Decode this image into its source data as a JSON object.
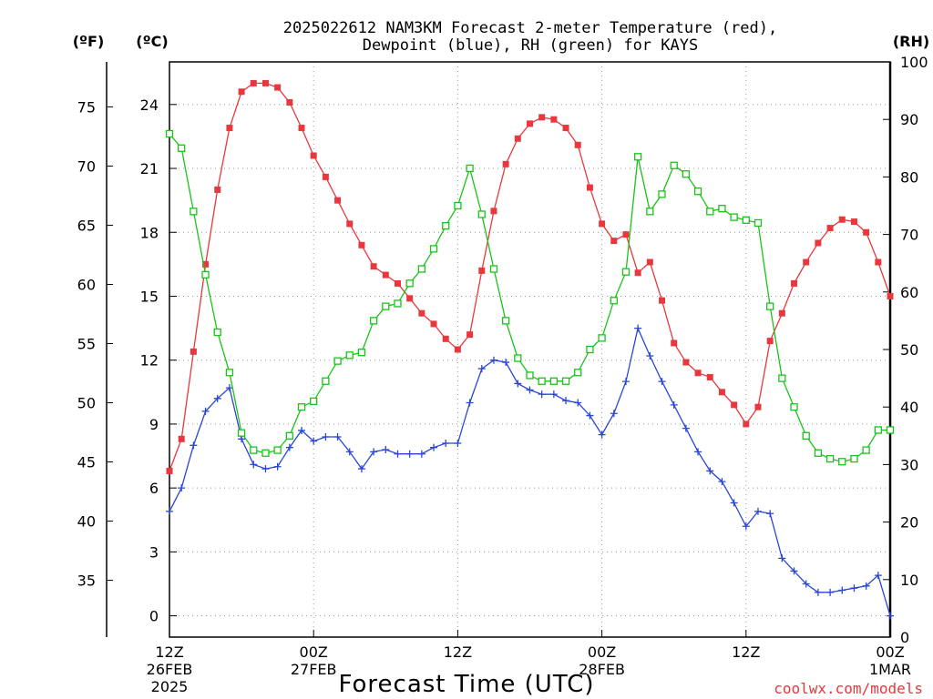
{
  "title": {
    "line1": "2025022612 NAM3KM Forecast 2-meter Temperature (red),",
    "line2": "Dewpoint (blue), RH (green) for KAYS"
  },
  "credit": "coolwx.com/models",
  "colors": {
    "temperature": "#e8383d",
    "dewpoint": "#2a46d6",
    "rh": "#19c419",
    "credit": "#e8383d"
  },
  "chart_data": {
    "type": "line",
    "xlabel": "Forecast Time (UTC)",
    "x_range": [
      0,
      60
    ],
    "x_ticks": [
      {
        "x": 0,
        "lines": [
          "12Z",
          "26FEB",
          "2025"
        ]
      },
      {
        "x": 12,
        "lines": [
          "00Z",
          "27FEB"
        ]
      },
      {
        "x": 24,
        "lines": [
          "12Z"
        ]
      },
      {
        "x": 36,
        "lines": [
          "00Z",
          "28FEB"
        ]
      },
      {
        "x": 48,
        "lines": [
          "12Z"
        ]
      },
      {
        "x": 60,
        "lines": [
          "00Z",
          "1MAR"
        ]
      }
    ],
    "y_left_c": {
      "label": "(ºC)",
      "range": [
        -1,
        26
      ],
      "ticks": [
        0,
        3,
        6,
        9,
        12,
        15,
        18,
        21,
        24
      ]
    },
    "y_left_f": {
      "label": "(ºF)",
      "ticks": [
        35,
        40,
        45,
        50,
        55,
        60,
        65,
        70,
        75
      ]
    },
    "y_right_rh": {
      "label": "(RH)",
      "range": [
        0,
        100
      ],
      "ticks": [
        0,
        10,
        20,
        30,
        40,
        50,
        60,
        70,
        80,
        90,
        100
      ]
    },
    "grid": true,
    "series": [
      {
        "name": "Temperature",
        "unit": "C",
        "color": "#e8383d",
        "marker": "filled-square",
        "values": [
          6.8,
          8.3,
          12.4,
          16.5,
          20.0,
          22.9,
          24.6,
          25.0,
          25.0,
          24.8,
          24.1,
          22.9,
          21.6,
          20.6,
          19.5,
          18.4,
          17.4,
          16.4,
          16.0,
          15.6,
          14.9,
          14.2,
          13.7,
          13.0,
          12.5,
          13.2,
          16.2,
          19.0,
          21.2,
          22.4,
          23.1,
          23.4,
          23.3,
          22.9,
          22.1,
          20.1,
          18.4,
          17.6,
          17.9,
          16.1,
          16.6,
          14.8,
          12.8,
          11.9,
          11.4,
          11.2,
          10.5,
          9.9,
          9.0,
          9.8,
          12.9,
          14.2,
          15.6,
          16.6,
          17.5,
          18.2,
          18.6,
          18.5,
          18.0,
          16.6,
          15.0
        ]
      },
      {
        "name": "Dewpoint",
        "unit": "C",
        "color": "#2a46d6",
        "marker": "plus",
        "values": [
          4.9,
          6.0,
          8.0,
          9.6,
          10.2,
          10.7,
          8.3,
          7.1,
          6.9,
          7.0,
          7.9,
          8.7,
          8.2,
          8.4,
          8.4,
          7.7,
          6.9,
          7.7,
          7.8,
          7.6,
          7.6,
          7.6,
          7.9,
          8.1,
          8.1,
          10.0,
          11.6,
          12.0,
          11.9,
          10.9,
          10.6,
          10.4,
          10.4,
          10.1,
          10.0,
          9.4,
          8.5,
          9.5,
          11.0,
          13.5,
          12.2,
          11.0,
          9.9,
          8.8,
          7.7,
          6.8,
          6.3,
          5.3,
          4.2,
          4.9,
          4.8,
          2.7,
          2.1,
          1.5,
          1.1,
          1.1,
          1.2,
          1.3,
          1.4,
          1.9,
          0.0
        ]
      },
      {
        "name": "RH",
        "unit": "%",
        "color": "#19c419",
        "marker": "open-square",
        "values": [
          87.5,
          85.0,
          74.0,
          63.0,
          53.0,
          46.0,
          35.5,
          32.5,
          32.0,
          32.5,
          35.0,
          40.0,
          41.0,
          44.5,
          48.0,
          49.0,
          49.5,
          55.0,
          57.5,
          58.0,
          61.5,
          64.0,
          67.5,
          71.5,
          75.0,
          81.5,
          73.5,
          64.0,
          55.0,
          48.5,
          45.5,
          44.5,
          44.5,
          44.5,
          46.0,
          50.0,
          52.0,
          58.5,
          63.5,
          83.5,
          74.0,
          77.0,
          82.0,
          80.5,
          77.5,
          74.0,
          74.5,
          73.0,
          72.5,
          72.0,
          57.5,
          45.0,
          40.0,
          35.0,
          32.0,
          31.0,
          30.5,
          31.0,
          32.5,
          36.0,
          36.0
        ]
      }
    ]
  }
}
